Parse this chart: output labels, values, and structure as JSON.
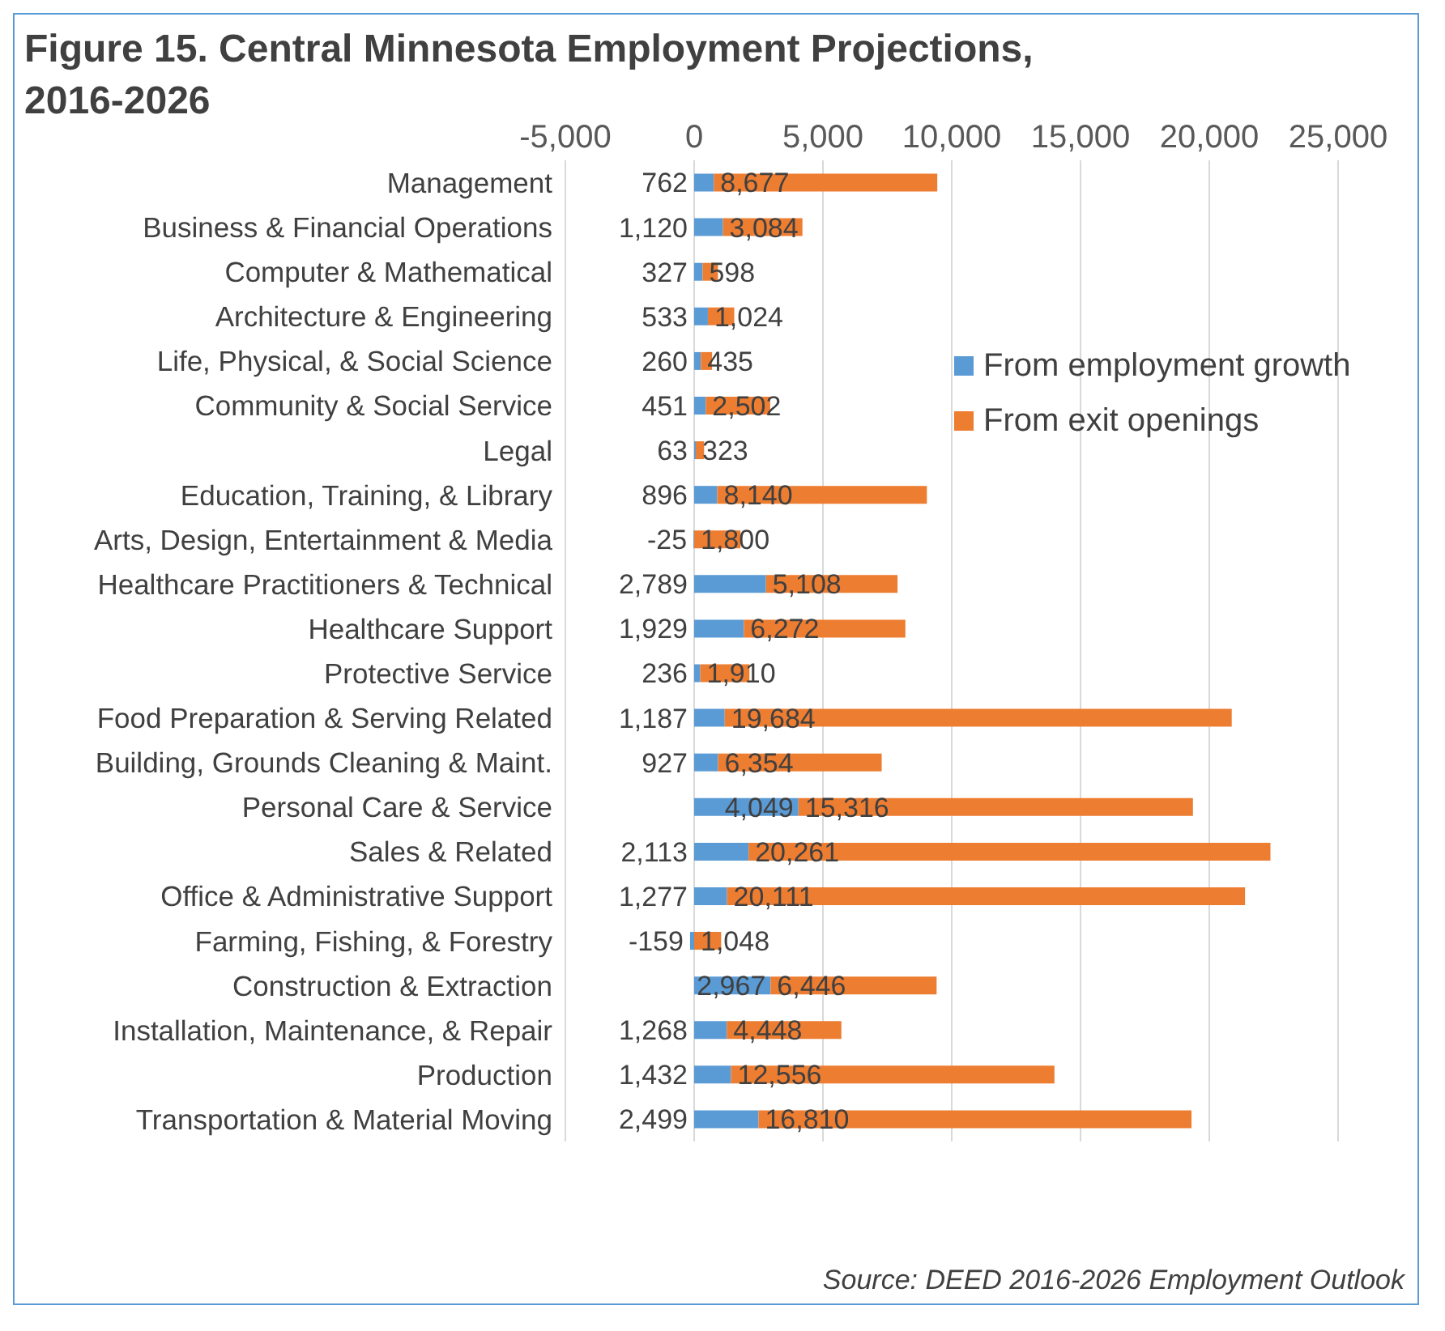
{
  "chart_data": {
    "type": "bar",
    "orientation": "horizontal",
    "stacked": true,
    "title": "Figure 15. Central Minnesota Employment Projections, 2016-2026",
    "categories": [
      "Management",
      "Business & Financial Operations",
      "Computer & Mathematical",
      "Architecture & Engineering",
      "Life, Physical, & Social Science",
      "Community & Social Service",
      "Legal",
      "Education, Training, & Library",
      "Arts, Design, Entertainment & Media",
      "Healthcare Practitioners & Technical",
      "Healthcare Support",
      "Protective Service",
      "Food Preparation & Serving Related",
      "Building, Grounds Cleaning & Maint.",
      "Personal Care & Service",
      "Sales & Related",
      "Office & Administrative Support",
      "Farming, Fishing, & Forestry",
      "Construction & Extraction",
      "Installation, Maintenance, & Repair",
      "Production",
      "Transportation & Material Moving"
    ],
    "series": [
      {
        "name": "From employment growth",
        "color": "#5b9bd5",
        "values": [
          762,
          1120,
          327,
          533,
          260,
          451,
          63,
          896,
          -25,
          2789,
          1929,
          236,
          1187,
          927,
          4049,
          2113,
          1277,
          -159,
          2967,
          1268,
          1432,
          2499
        ],
        "value_labels": [
          "762",
          "1,120",
          "327",
          "533",
          "260",
          "451",
          "63",
          "896",
          "-25",
          "2,789",
          "1,929",
          "236",
          "1,187",
          "927",
          "4,049",
          "2,113",
          "1,277",
          "-159",
          "2,967",
          "1,268",
          "1,432",
          "2,499"
        ]
      },
      {
        "name": "From exit openings",
        "color": "#ed7d31",
        "values": [
          8677,
          3084,
          598,
          1024,
          435,
          2502,
          323,
          8140,
          1800,
          5108,
          6272,
          1910,
          19684,
          6354,
          15316,
          20261,
          20111,
          1048,
          6446,
          4448,
          12556,
          16810
        ],
        "value_labels": [
          "8,677",
          "3,084",
          "598",
          "1,024",
          "435",
          "2,502",
          "323",
          "8,140",
          "1,800",
          "5,108",
          "6,272",
          "1,910",
          "19,684",
          "6,354",
          "15,316",
          "20,261",
          "20,111",
          "1,048",
          "6,446",
          "4,448",
          "12,556",
          "16,810"
        ]
      }
    ],
    "xlim": [
      -5000,
      25000
    ],
    "xticks": [
      {
        "value": -5000,
        "label": "-5,000"
      },
      0,
      {
        "value": 5000,
        "label": "5,000"
      },
      {
        "value": 10000,
        "label": "10,000"
      },
      {
        "value": 15000,
        "label": "15,000"
      },
      {
        "value": 20000,
        "label": "20,000"
      },
      {
        "value": 25000,
        "label": "25,000"
      }
    ],
    "grid": "x",
    "legend": "top right",
    "annotations": [
      "Source: DEED 2016-2026 Employment Outlook"
    ]
  }
}
